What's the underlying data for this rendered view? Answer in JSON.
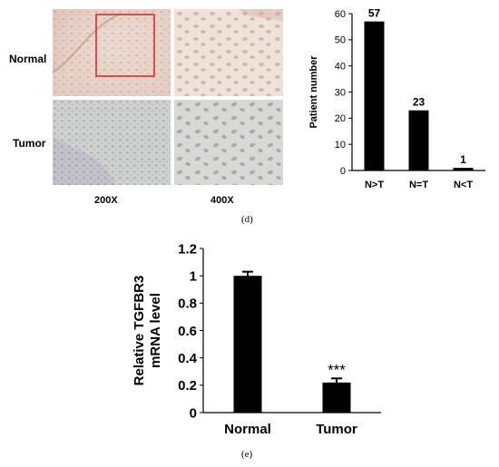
{
  "micrographs": {
    "row_labels": [
      "Normal",
      "Tumor"
    ],
    "column_labels": [
      "200X",
      "400X"
    ]
  },
  "captions": {
    "d": "(d)",
    "e": "(e)"
  },
  "chart_data": [
    {
      "type": "bar",
      "categories": [
        "N>T",
        "N=T",
        "N<T"
      ],
      "values": [
        57,
        23,
        1
      ],
      "data_labels": [
        "57",
        "23",
        "1"
      ],
      "xlabel": "",
      "ylabel": "Patient number",
      "ylim": [
        0,
        60
      ],
      "yticks": [
        0,
        10,
        20,
        30,
        40,
        50,
        60
      ],
      "bar_color": "#000000",
      "grid": false
    },
    {
      "type": "bar",
      "categories": [
        "Normal",
        "Tumor"
      ],
      "values": [
        1.0,
        0.22
      ],
      "error": [
        0.03,
        0.03
      ],
      "annotations": [
        "",
        "***"
      ],
      "xlabel": "",
      "ylabel": "Relative TGFBR3 mRNA level",
      "ylim": [
        0,
        1.2
      ],
      "yticks": [
        "0",
        "0.2",
        "0.4",
        "0.6",
        "0.8",
        "1",
        "1.2"
      ],
      "bar_color": "#000000",
      "grid": false
    }
  ]
}
